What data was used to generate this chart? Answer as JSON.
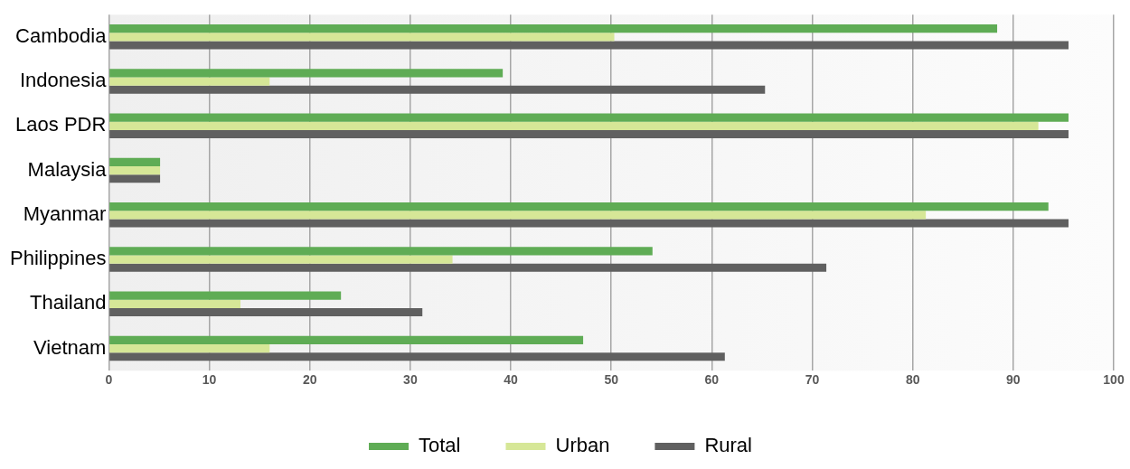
{
  "chart_data": {
    "type": "bar",
    "orientation": "horizontal",
    "categories": [
      "Cambodia",
      "Indonesia",
      "Laos PDR",
      "Malaysia",
      "Myanmar",
      "Philippines",
      "Thailand",
      "Vietnam"
    ],
    "series": [
      {
        "name": "Total",
        "color": "#5fac55",
        "values": [
          88.4,
          39.2,
          95.5,
          5.1,
          93.5,
          54.1,
          23.1,
          47.2
        ]
      },
      {
        "name": "Urban",
        "color": "#d6e797",
        "values": [
          50.3,
          16.0,
          92.5,
          5.1,
          81.3,
          34.2,
          13.1,
          16.0
        ]
      },
      {
        "name": "Rural",
        "color": "#606060",
        "values": [
          95.5,
          65.3,
          95.5,
          5.1,
          95.5,
          71.4,
          31.2,
          61.3
        ]
      }
    ],
    "xlim": [
      0,
      100
    ],
    "xticks": [
      0,
      10,
      20,
      30,
      40,
      50,
      60,
      70,
      80,
      90,
      100
    ],
    "grid": "x",
    "legend": "bottom"
  }
}
